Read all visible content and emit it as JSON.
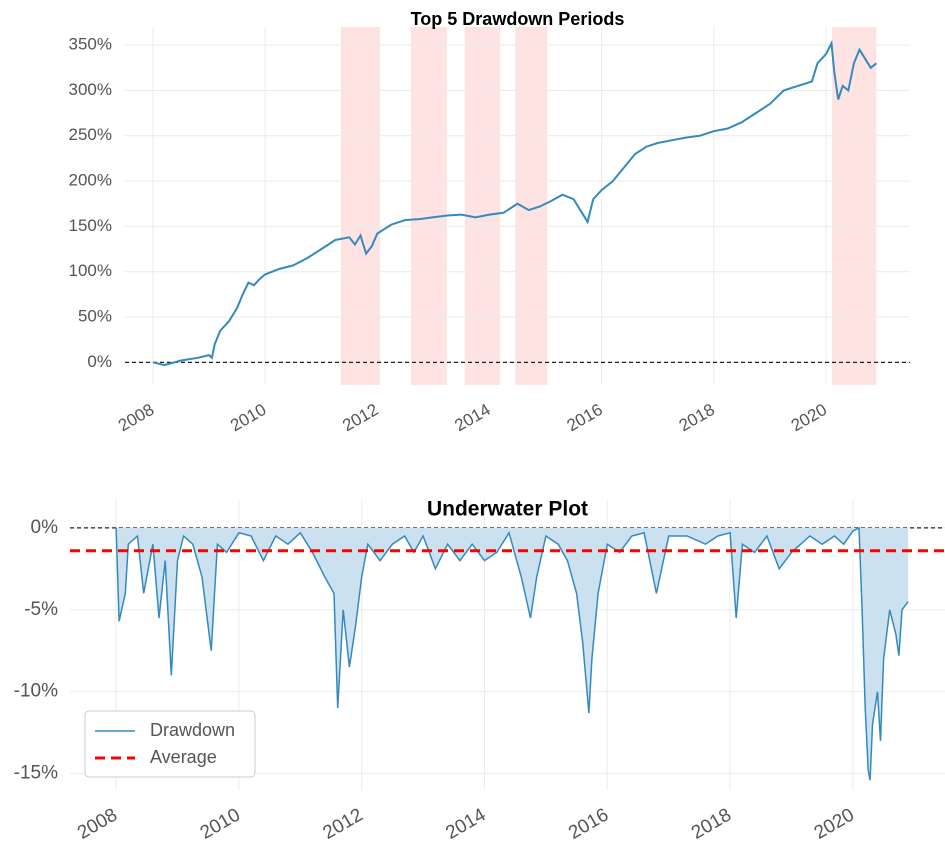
{
  "chart_data": [
    {
      "type": "line",
      "title": "Top 5 Drawdown Periods",
      "color": "#348abd",
      "x": [
        2008.0,
        2008.2,
        2008.5,
        2008.8,
        2009.0,
        2009.05,
        2009.1,
        2009.2,
        2009.35,
        2009.5,
        2009.6,
        2009.7,
        2009.8,
        2009.9,
        2010.0,
        2010.25,
        2010.5,
        2010.75,
        2011.0,
        2011.25,
        2011.5,
        2011.6,
        2011.7,
        2011.8,
        2011.9,
        2012.0,
        2012.25,
        2012.5,
        2012.75,
        2013.0,
        2013.25,
        2013.5,
        2013.75,
        2014.0,
        2014.25,
        2014.5,
        2014.7,
        2014.9,
        2015.1,
        2015.3,
        2015.5,
        2015.65,
        2015.75,
        2015.85,
        2016.0,
        2016.2,
        2016.4,
        2016.6,
        2016.8,
        2017.0,
        2017.25,
        2017.5,
        2017.75,
        2018.0,
        2018.25,
        2018.5,
        2018.75,
        2019.0,
        2019.25,
        2019.5,
        2019.75,
        2019.85,
        2020.0,
        2020.1,
        2020.15,
        2020.22,
        2020.3,
        2020.4,
        2020.5,
        2020.6,
        2020.7,
        2020.8,
        2020.9
      ],
      "values": [
        0,
        -3,
        2,
        5,
        8,
        5,
        20,
        35,
        45,
        60,
        75,
        88,
        85,
        92,
        97,
        103,
        107,
        115,
        125,
        135,
        138,
        130,
        140,
        120,
        128,
        142,
        152,
        157,
        158,
        160,
        162,
        163,
        160,
        163,
        165,
        175,
        168,
        172,
        178,
        185,
        180,
        165,
        155,
        180,
        190,
        200,
        215,
        230,
        238,
        242,
        245,
        248,
        250,
        255,
        258,
        265,
        275,
        285,
        300,
        305,
        310,
        330,
        340,
        352,
        320,
        290,
        305,
        300,
        330,
        345,
        335,
        325,
        330
      ],
      "spans": [
        [
          2011.35,
          2012.05
        ],
        [
          2012.6,
          2013.24
        ],
        [
          2013.56,
          2014.19
        ],
        [
          2014.46,
          2015.03
        ],
        [
          2020.11,
          2020.9
        ]
      ],
      "span_color": "#ffe3e3",
      "xlim": [
        2007.5,
        2021.5
      ],
      "xticks": [
        2008,
        2010,
        2012,
        2014,
        2016,
        2018,
        2020
      ],
      "ylim": [
        -25,
        370
      ],
      "yticks": [
        {
          "value": 0,
          "label": "0%"
        },
        {
          "value": 50,
          "label": "50%"
        },
        {
          "value": 100,
          "label": "100%"
        },
        {
          "value": 150,
          "label": "150%"
        },
        {
          "value": 200,
          "label": "200%"
        },
        {
          "value": 250,
          "label": "250%"
        },
        {
          "value": 300,
          "label": "300%"
        },
        {
          "value": 350,
          "label": "350%"
        }
      ],
      "grid": true
    },
    {
      "type": "area",
      "title": "Underwater Plot",
      "x": [
        2008.0,
        2008.05,
        2008.15,
        2008.2,
        2008.35,
        2008.45,
        2008.6,
        2008.7,
        2008.8,
        2008.9,
        2009.0,
        2009.1,
        2009.25,
        2009.4,
        2009.55,
        2009.65,
        2009.8,
        2010.0,
        2010.2,
        2010.4,
        2010.6,
        2010.8,
        2011.0,
        2011.2,
        2011.4,
        2011.55,
        2011.61,
        2011.7,
        2011.8,
        2011.9,
        2012.0,
        2012.1,
        2012.3,
        2012.5,
        2012.7,
        2012.85,
        2013.0,
        2013.2,
        2013.4,
        2013.6,
        2013.8,
        2014.0,
        2014.2,
        2014.4,
        2014.6,
        2014.75,
        2014.85,
        2015.0,
        2015.2,
        2015.35,
        2015.5,
        2015.6,
        2015.7,
        2015.75,
        2015.85,
        2016.0,
        2016.2,
        2016.4,
        2016.6,
        2016.8,
        2017.0,
        2017.3,
        2017.6,
        2017.8,
        2018.0,
        2018.1,
        2018.2,
        2018.4,
        2018.6,
        2018.8,
        2019.0,
        2019.3,
        2019.5,
        2019.7,
        2019.85,
        2020.0,
        2020.1,
        2020.15,
        2020.2,
        2020.25,
        2020.28,
        2020.32,
        2020.4,
        2020.45,
        2020.5,
        2020.6,
        2020.7,
        2020.75,
        2020.8,
        2020.9
      ],
      "series": [
        {
          "name": "Drawdown",
          "color": "#348abd",
          "fill": "#cce1ef",
          "values": [
            0,
            -5.7,
            -4,
            -1,
            -0.5,
            -4,
            -1,
            -5.5,
            -2,
            -9,
            -2,
            -0.5,
            -1,
            -3,
            -7.5,
            -1,
            -1.5,
            -0.3,
            -0.5,
            -2,
            -0.5,
            -1,
            -0.3,
            -1.5,
            -3,
            -4,
            -11,
            -5,
            -8.5,
            -6,
            -3,
            -1,
            -2,
            -1,
            -0.5,
            -1.5,
            -0.5,
            -2.5,
            -1,
            -2,
            -1,
            -2,
            -1.5,
            -0.3,
            -3,
            -5.5,
            -3,
            -0.5,
            -1,
            -2,
            -4,
            -7,
            -11.3,
            -8,
            -4,
            -1,
            -1.5,
            -0.5,
            -0.3,
            -4,
            -0.5,
            -0.5,
            -1,
            -0.5,
            -0.3,
            -5.5,
            -1,
            -1.5,
            -0.5,
            -2.5,
            -1.5,
            -0.5,
            -1,
            -0.5,
            -1,
            -0.2,
            0,
            -5,
            -11,
            -14.8,
            -15.4,
            -12,
            -10,
            -13,
            -8,
            -5,
            -6.5,
            -7.8,
            -5,
            -4.5
          ]
        }
      ],
      "hlines": [
        {
          "name": "Average",
          "color": "#ff0000",
          "value": -1.4
        }
      ],
      "legend": "lower left",
      "xlim": [
        2007.25,
        2021.5
      ],
      "xticks": [
        2008,
        2010,
        2012,
        2014,
        2016,
        2018,
        2020
      ],
      "ylim": [
        -16,
        1.7
      ],
      "yticks": [
        {
          "value": 0,
          "label": "0%"
        },
        {
          "value": -5,
          "label": "-5%"
        },
        {
          "value": -10,
          "label": "-10%"
        },
        {
          "value": -15,
          "label": "-15%"
        }
      ],
      "grid": true
    }
  ]
}
